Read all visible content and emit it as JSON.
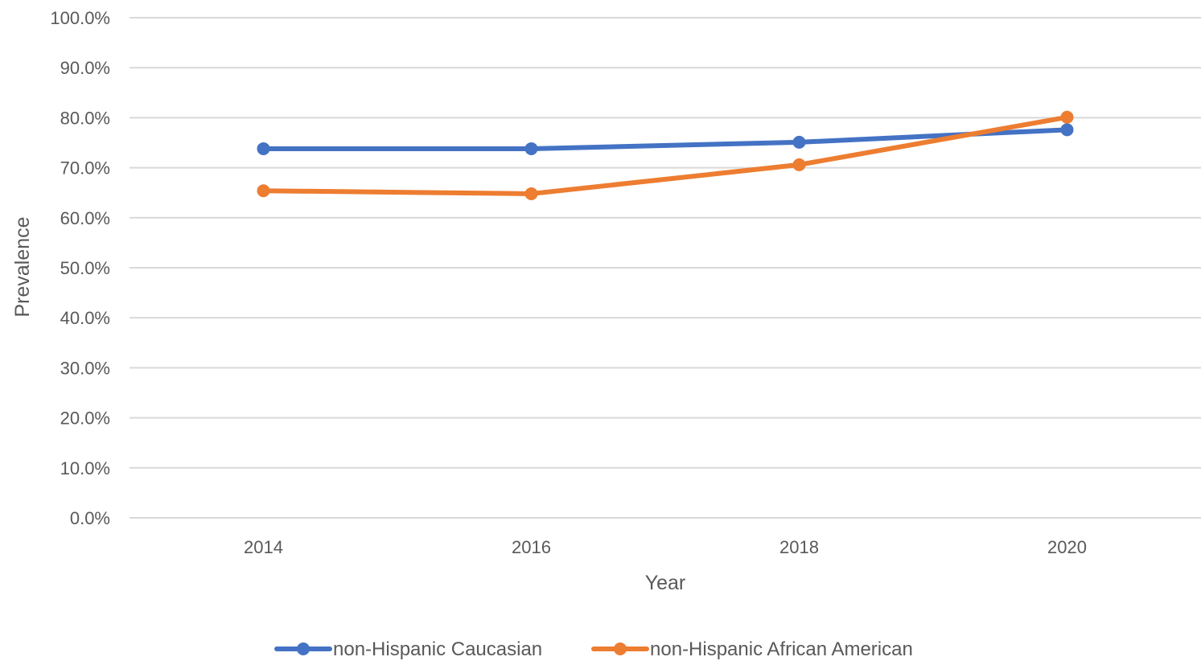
{
  "chart_data": {
    "type": "line",
    "title": "",
    "xlabel": "Year",
    "ylabel": "Prevalence",
    "x": [
      2014,
      2016,
      2018,
      2020
    ],
    "xlim": [
      2013,
      2021
    ],
    "ylim": [
      0,
      100
    ],
    "y_tick_step": 10,
    "y_tick_format": "percent_1dp",
    "y_tick_labels": [
      "0.0%",
      "10.0%",
      "20.0%",
      "30.0%",
      "40.0%",
      "50.0%",
      "60.0%",
      "70.0%",
      "80.0%",
      "90.0%",
      "100.0%"
    ],
    "grid": "horizontal",
    "legend_position": "bottom",
    "series": [
      {
        "name": "non-Hispanic Caucasian",
        "values": [
          73.8,
          73.8,
          75.1,
          77.6
        ],
        "color": "#4472c4",
        "marker": "circle"
      },
      {
        "name": "non-Hispanic African American",
        "values": [
          65.4,
          64.8,
          70.6,
          80.1
        ],
        "color": "#ed7d31",
        "marker": "circle"
      }
    ]
  }
}
